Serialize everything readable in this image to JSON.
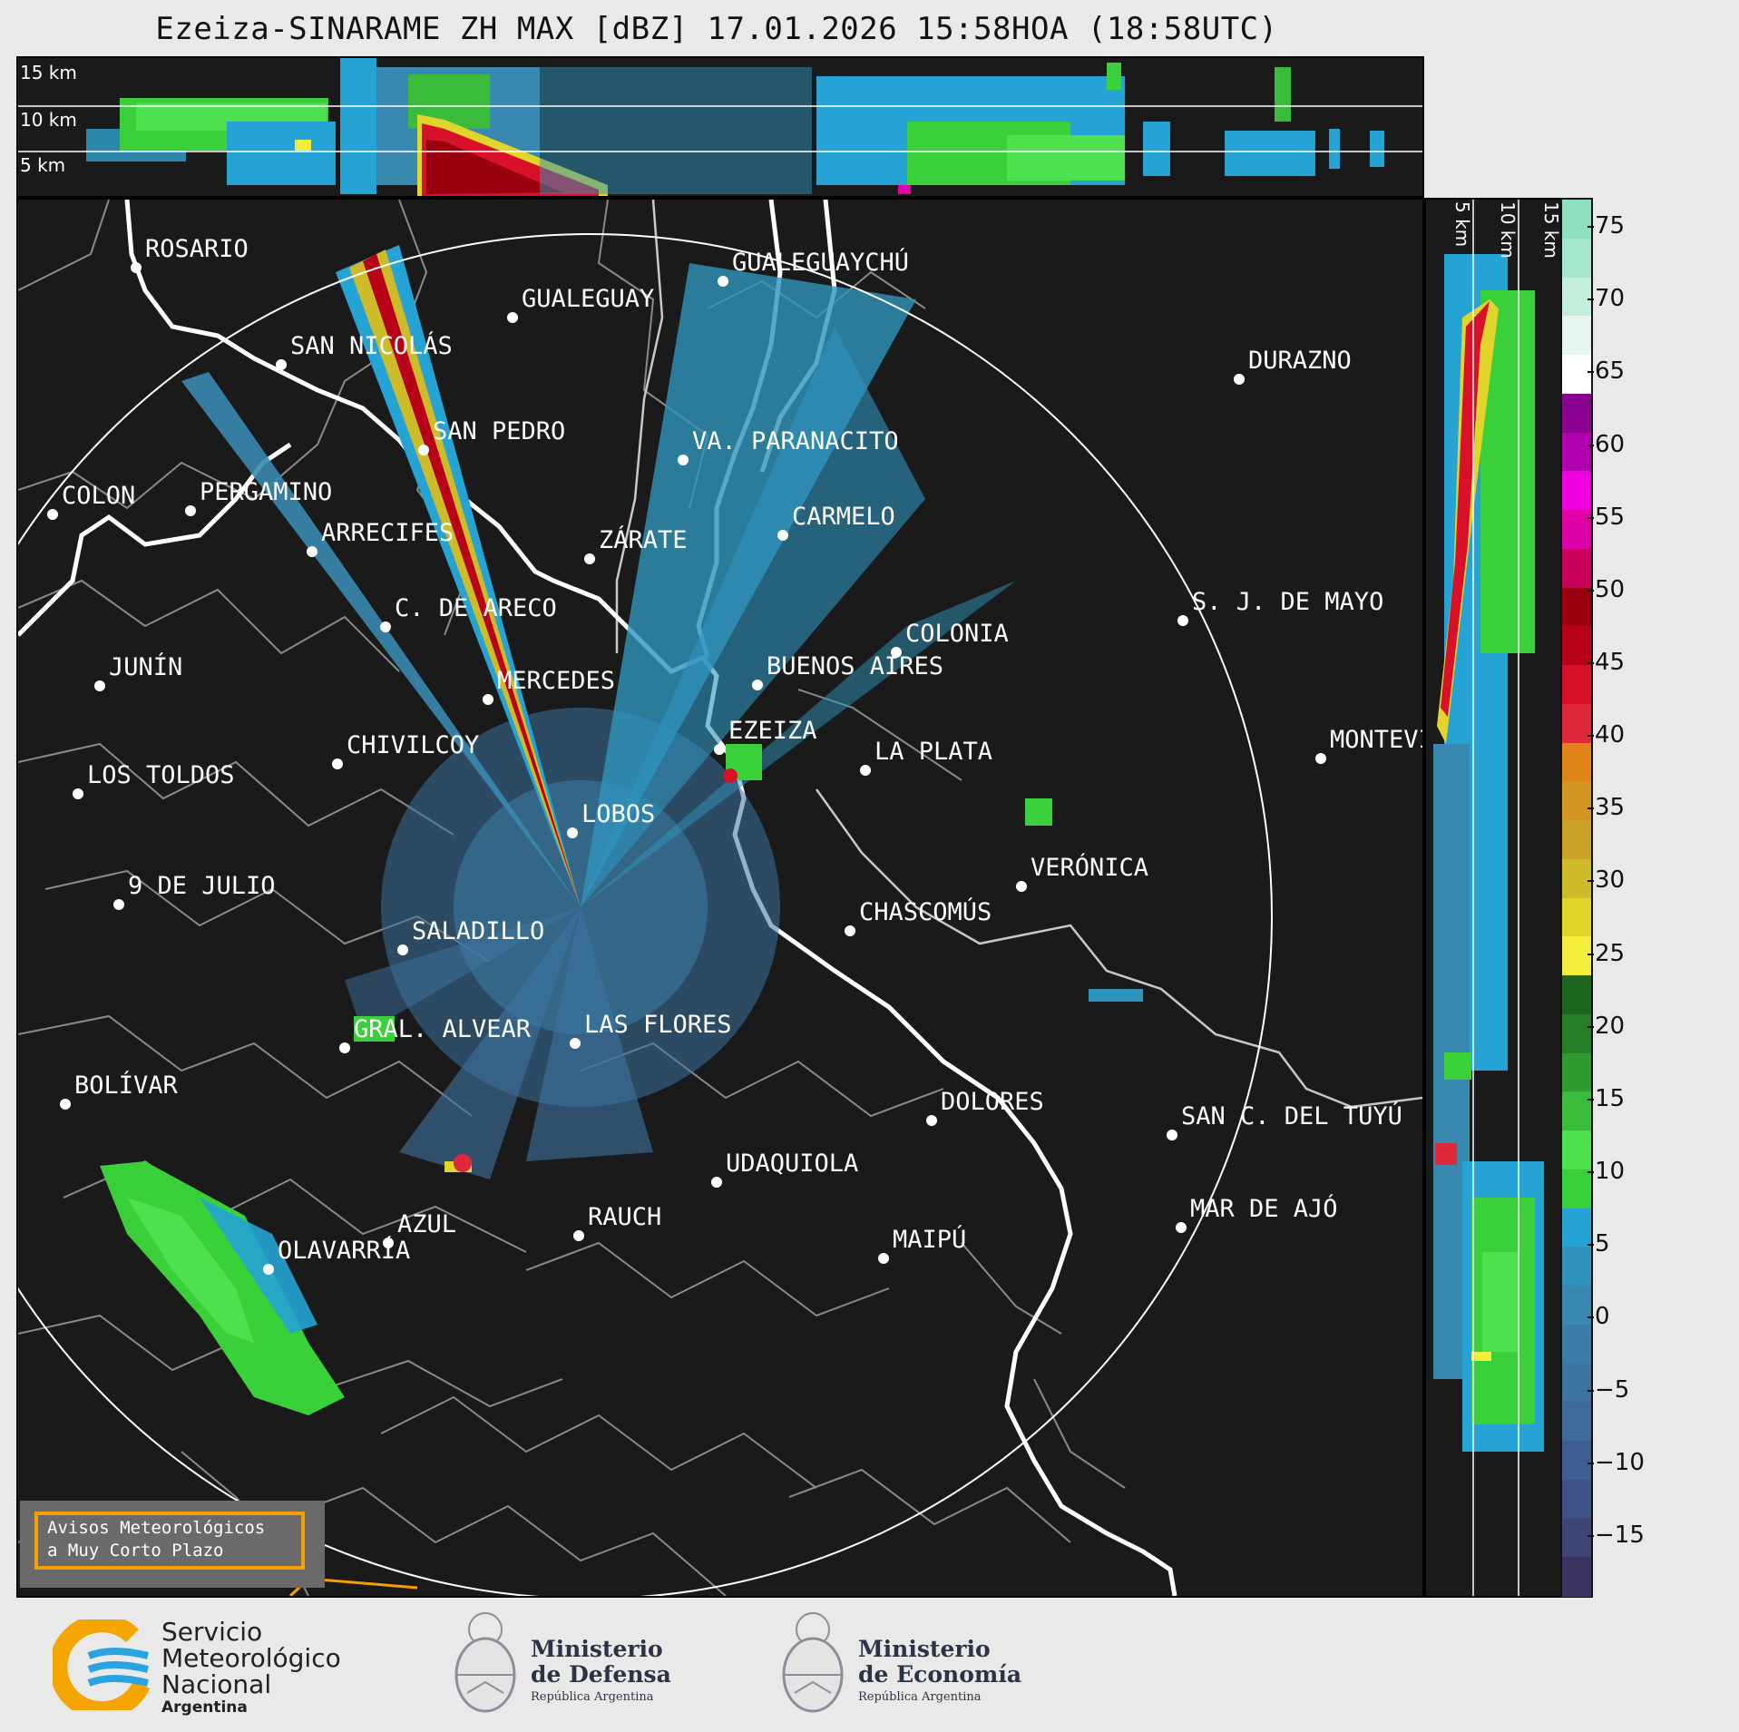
{
  "title": "Ezeiza-SINARAME ZH MAX [dBZ] 17.01.2026 15:58HOA (18:58UTC)",
  "top_panel": {
    "height_labels": [
      "15 km",
      "10 km",
      "5 km"
    ]
  },
  "side_panel": {
    "height_labels": [
      "5 km",
      "10 km",
      "15 km"
    ]
  },
  "cities": [
    {
      "name": "ROSARIO"
    },
    {
      "name": "GUALEGUAYCHÚ"
    },
    {
      "name": "GUALEGUAY"
    },
    {
      "name": "SAN NICOLÁS"
    },
    {
      "name": "DURAZNO"
    },
    {
      "name": "SAN PEDRO"
    },
    {
      "name": "VA. PARANACITO"
    },
    {
      "name": "COLON"
    },
    {
      "name": "PERGAMINO"
    },
    {
      "name": "CARMELO"
    },
    {
      "name": "ARRECIFES"
    },
    {
      "name": "ZÁRATE"
    },
    {
      "name": "C. DE ARECO"
    },
    {
      "name": "S. J. DE MAYO"
    },
    {
      "name": "COLONIA"
    },
    {
      "name": "JUNÍN"
    },
    {
      "name": "BUENOS AIRES"
    },
    {
      "name": "MERCEDES"
    },
    {
      "name": "EZEIZA"
    },
    {
      "name": "MONTEVIDEO"
    },
    {
      "name": "CHIVILCOY"
    },
    {
      "name": "LA PLATA"
    },
    {
      "name": "LOS TOLDOS"
    },
    {
      "name": "LOBOS"
    },
    {
      "name": "VERÓNICA"
    },
    {
      "name": "9 DE JULIO"
    },
    {
      "name": "CHASCOMÚS"
    },
    {
      "name": "SALADILLO"
    },
    {
      "name": "GRAL. ALVEAR"
    },
    {
      "name": "LAS FLORES"
    },
    {
      "name": "BOLÍVAR"
    },
    {
      "name": "DOLORES"
    },
    {
      "name": "SAN C. DEL TUYÚ"
    },
    {
      "name": "UDAQUIOLA"
    },
    {
      "name": "MAR DE AJÓ"
    },
    {
      "name": "AZUL"
    },
    {
      "name": "RAUCH"
    },
    {
      "name": "OLAVARRÍA"
    },
    {
      "name": "MAIPÚ"
    }
  ],
  "colorbar": {
    "unit": "dBZ",
    "ticks": [
      "75",
      "70",
      "65",
      "60",
      "55",
      "50",
      "45",
      "40",
      "35",
      "30",
      "25",
      "20",
      "15",
      "10",
      "5",
      "0",
      "−5",
      "−10",
      "−15"
    ],
    "bands": [
      [
        "#3a3560"
      ],
      [
        "#3d4476"
      ],
      [
        "#3e5286"
      ],
      [
        "#3f5e90"
      ],
      [
        "#3f6998"
      ],
      [
        "#3e73a0"
      ],
      [
        "#3b7da7"
      ],
      [
        "#3888b0"
      ],
      [
        "#2f93bc"
      ],
      [
        "#25a3d4"
      ],
      [
        "#3ad03a"
      ],
      [
        "#4fe04f"
      ],
      [
        "#3bbb3b"
      ],
      [
        "#2f9a2f"
      ],
      [
        "#267f26"
      ],
      [
        "#1d661d"
      ],
      [
        "#f2ee3a"
      ],
      [
        "#e0d52a"
      ],
      [
        "#cdbb2a"
      ],
      [
        "#c9a328"
      ],
      [
        "#d49522"
      ],
      [
        "#e08319"
      ],
      [
        "#e0283c"
      ],
      [
        "#d8102a"
      ],
      [
        "#b80018"
      ],
      [
        "#98000f"
      ],
      [
        "#c8005a"
      ],
      [
        "#e000a8"
      ],
      [
        "#f000e0"
      ],
      [
        "#b000b0"
      ],
      [
        "#8a0090"
      ],
      [
        "#ffffff"
      ],
      [
        "#e4f6ee"
      ],
      [
        "#c4eedc"
      ],
      [
        "#a6e6cc"
      ],
      [
        "#8ee0bf"
      ]
    ]
  },
  "avisos": {
    "line1": "Avisos Meteorológicos",
    "line2": "a Muy Corto Plazo"
  },
  "footer": {
    "smn": {
      "line1": "Servicio",
      "line2": "Meteorológico",
      "line3": "Nacional",
      "line4": "Argentina"
    },
    "defensa": {
      "line1": "Ministerio",
      "line2": "de Defensa",
      "line3": "República Argentina"
    },
    "economia": {
      "line1": "Ministerio",
      "line2": "de Economía",
      "line3": "República Argentina"
    }
  }
}
